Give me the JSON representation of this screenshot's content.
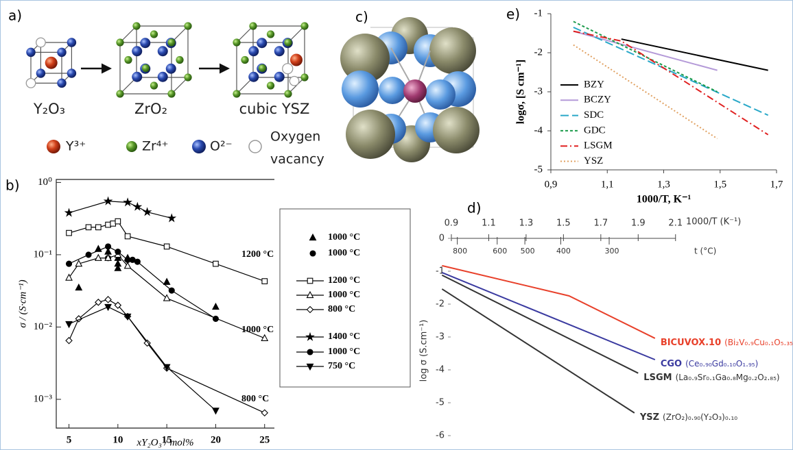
{
  "panel_a": {
    "label": "a)",
    "compounds": [
      "Y₂O₃",
      "ZrO₂",
      "cubic YSZ"
    ],
    "legend": [
      "Y³⁺",
      "Zr⁴⁺",
      "O²⁻",
      "Oxygen",
      "vacancy"
    ]
  },
  "panel_c": {
    "label": "c)"
  },
  "chart_data": [
    {
      "type": "line",
      "title": "e)",
      "xlabel": "1000/T, K⁻¹",
      "ylabel": "logσ, [S cm⁻¹]",
      "xlim": [
        0.9,
        1.7
      ],
      "xticks": [
        {
          "value": 0.9,
          "label": "0,9"
        },
        {
          "value": 1.1,
          "label": "1,1"
        },
        {
          "value": 1.3,
          "label": "1,3"
        },
        {
          "value": 1.5,
          "label": "1,5"
        },
        {
          "value": 1.7,
          "label": "1,7"
        }
      ],
      "ylim": [
        -5,
        -1
      ],
      "yticks": [
        -5,
        -4,
        -3,
        -2,
        -1
      ],
      "series": [
        {
          "name": "BZY",
          "color": "#000000",
          "dash": "none",
          "x": [
            1.15,
            1.67
          ],
          "values": [
            -1.65,
            -2.45
          ]
        },
        {
          "name": "BCZY",
          "color": "#b49ad8",
          "dash": "none",
          "x": [
            0.98,
            1.49
          ],
          "values": [
            -1.45,
            -2.45
          ]
        },
        {
          "name": "SDC",
          "color": "#29a8c8",
          "dash": "12,5",
          "x": [
            0.98,
            1.67
          ],
          "values": [
            -1.35,
            -3.6
          ]
        },
        {
          "name": "GDC",
          "color": "#1a9a4a",
          "dash": "4,3",
          "x": [
            0.98,
            1.49
          ],
          "values": [
            -1.2,
            -3.0
          ]
        },
        {
          "name": "LSGM",
          "color": "#e02020",
          "dash": "10,4,2,4",
          "x": [
            0.98,
            1.15,
            1.67
          ],
          "values": [
            -1.45,
            -1.7,
            -4.1
          ]
        },
        {
          "name": "YSZ",
          "color": "#e0a060",
          "dash": "2,3",
          "x": [
            0.98,
            1.49
          ],
          "values": [
            -1.8,
            -4.2
          ]
        }
      ]
    },
    {
      "type": "line",
      "title": "b)",
      "xlabel": "xY₂O₃ / mol%",
      "ylabel": "σ / (S·cm⁻¹)",
      "xlim": [
        3.7,
        26
      ],
      "xticks": [
        5,
        10,
        15,
        20,
        25
      ],
      "ylim": [
        0.0004,
        1.1
      ],
      "yscale": "log",
      "yticks": [
        {
          "value": 0.001,
          "label": "10⁻³"
        },
        {
          "value": 0.01,
          "label": "10⁻²"
        },
        {
          "value": 0.1,
          "label": "10⁻¹"
        },
        {
          "value": 1,
          "label": "10⁰"
        }
      ],
      "annotations": [
        "1200 °C",
        "1000 °C",
        "800 °C"
      ],
      "series": [
        {
          "name": "1000 °C",
          "color": "#000000",
          "line": false,
          "marker": "triangle-filled",
          "x": [
            6,
            8,
            9,
            10,
            10,
            10,
            11,
            15,
            20
          ],
          "values": [
            0.035,
            0.12,
            0.11,
            0.065,
            0.075,
            0.09,
            0.09,
            0.042,
            0.019
          ]
        },
        {
          "name": "1000 °C",
          "color": "#000000",
          "line": false,
          "marker": "circle-filled",
          "x": [
            9,
            11.5
          ],
          "values": [
            0.09,
            0.085
          ]
        },
        {
          "name": "1200 °C",
          "color": "#000000",
          "marker": "square-open",
          "x": [
            5,
            7,
            8,
            9,
            9.5,
            10,
            11,
            15,
            20,
            25
          ],
          "values": [
            0.2,
            0.24,
            0.24,
            0.26,
            0.27,
            0.29,
            0.18,
            0.13,
            0.075,
            0.043
          ]
        },
        {
          "name": "1000 °C",
          "color": "#000000",
          "marker": "triangle-open",
          "x": [
            5,
            6,
            8,
            9,
            10,
            11,
            15,
            25
          ],
          "values": [
            0.048,
            0.075,
            0.09,
            0.09,
            0.1,
            0.07,
            0.025,
            0.007
          ]
        },
        {
          "name": "800 °C",
          "color": "#000000",
          "marker": "diamond-open",
          "x": [
            5,
            6,
            8,
            9,
            10,
            11,
            13,
            15,
            25
          ],
          "values": [
            0.0065,
            0.013,
            0.022,
            0.024,
            0.02,
            0.014,
            0.006,
            0.0027,
            0.00065
          ]
        },
        {
          "name": "1400 °C",
          "color": "#000000",
          "marker": "star-filled",
          "x": [
            5,
            9,
            11,
            12,
            13,
            15.5
          ],
          "values": [
            0.38,
            0.55,
            0.53,
            0.46,
            0.39,
            0.32
          ]
        },
        {
          "name": "1000 °C",
          "color": "#000000",
          "marker": "circle-filled",
          "x": [
            5,
            7,
            9,
            10,
            11,
            12,
            15.5,
            20
          ],
          "values": [
            0.075,
            0.1,
            0.13,
            0.11,
            0.085,
            0.08,
            0.032,
            0.013
          ]
        },
        {
          "name": "750 °C",
          "color": "#000000",
          "marker": "triangle-down-filled",
          "x": [
            5,
            9,
            11,
            15,
            20
          ],
          "values": [
            0.011,
            0.019,
            0.014,
            0.0028,
            0.0007
          ]
        }
      ]
    },
    {
      "type": "line",
      "title": "d)",
      "xlabel": "1000/T (K⁻¹)",
      "x2label": "t (°C)",
      "ylabel": "log σ (S.cm⁻¹)",
      "xlim": [
        0.8,
        2.2
      ],
      "xticks": [
        0.9,
        1.1,
        1.3,
        1.5,
        1.7,
        1.9,
        2.1
      ],
      "x2ticks": [
        800,
        600,
        500,
        400,
        300
      ],
      "ylim": [
        -6,
        0
      ],
      "yticks": [
        -6,
        -5,
        -4,
        -3,
        -2,
        -1,
        0
      ],
      "series": [
        {
          "name": "BICUVOX.10",
          "formula": "(Bi₂V₀.₉Cu₀.₁O₅.₃₅)",
          "color": "#e8402a",
          "x": [
            0.85,
            1.53,
            1.99
          ],
          "values": [
            -0.83,
            -1.75,
            -3.04
          ]
        },
        {
          "name": "CGO",
          "formula": "(Ce₀.₉₀Gd₀.₁₀O₁.₉₅)",
          "color": "#3a3aa0",
          "x": [
            0.85,
            1.99
          ],
          "values": [
            -1.04,
            -3.69
          ]
        },
        {
          "name": "LSGM",
          "formula": "(La₀.₉Sr₀.₁Ga₀.₈Mg₀.₂O₂.₈₅)",
          "color": "#333333",
          "x": [
            0.85,
            1.9
          ],
          "values": [
            -1.12,
            -4.1
          ]
        },
        {
          "name": "YSZ",
          "formula": "(ZrO₂)₀.₉₀(Y₂O₃)₀.₁₀",
          "color": "#333333",
          "x": [
            0.85,
            1.88
          ],
          "values": [
            -1.54,
            -5.31
          ]
        }
      ]
    }
  ]
}
